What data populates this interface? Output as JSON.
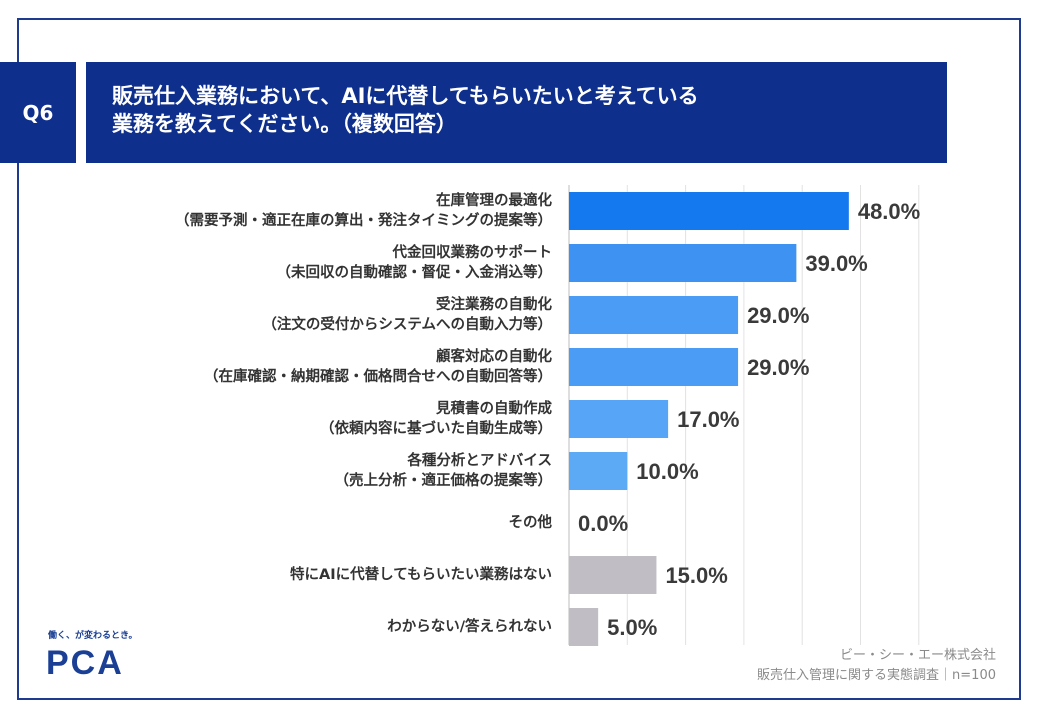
{
  "header": {
    "badge": "Q6",
    "title_line1": "販売仕入業務において、AIに代替してもらいたいと考えている",
    "title_line2": "業務を教えてください。（複数回答）"
  },
  "chart_data": {
    "type": "bar",
    "orientation": "horizontal",
    "unit": "%",
    "xlim": [
      0,
      60
    ],
    "grid": true,
    "categories": [
      [
        "在庫管理の最適化",
        "（需要予測・適正在庫の算出・発注タイミングの提案等）"
      ],
      [
        "代金回収業務のサポート",
        "（未回収の自動確認・督促・入金消込等）"
      ],
      [
        "受注業務の自動化",
        "（注文の受付からシステムへの自動入力等）"
      ],
      [
        "顧客対応の自動化",
        "（在庫確認・納期確認・価格問合せへの自動回答等）"
      ],
      [
        "見積書の自動作成",
        "（依頼内容に基づいた自動生成等）"
      ],
      [
        "各種分析とアドバイス",
        "（売上分析・適正価格の提案等）"
      ],
      [
        "その他"
      ],
      [
        "特にAIに代替してもらいたい業務はない"
      ],
      [
        "わからない/答えられない"
      ]
    ],
    "values": [
      48.0,
      39.0,
      29.0,
      29.0,
      17.0,
      10.0,
      0.0,
      15.0,
      5.0
    ],
    "value_labels": [
      "48.0%",
      "39.0%",
      "29.0%",
      "29.0%",
      "17.0%",
      "10.0%",
      "0.0%",
      "15.0%",
      "5.0%"
    ],
    "colors": [
      "#1478ee",
      "#3d92f2",
      "#4a9cf4",
      "#4a9cf4",
      "#57a5f6",
      "#5ca9f6",
      "#5ca9f6",
      "#c1bdc4",
      "#c1bdc4"
    ]
  },
  "footer": {
    "source_line1": "ビー・シー・エー株式会社",
    "source_line2": "販売仕入管理に関する実態調査｜n=100",
    "logo_tagline": "働く、が変わるとき。",
    "logo_text": "PCA",
    "logo_color": "#1b3f95"
  }
}
